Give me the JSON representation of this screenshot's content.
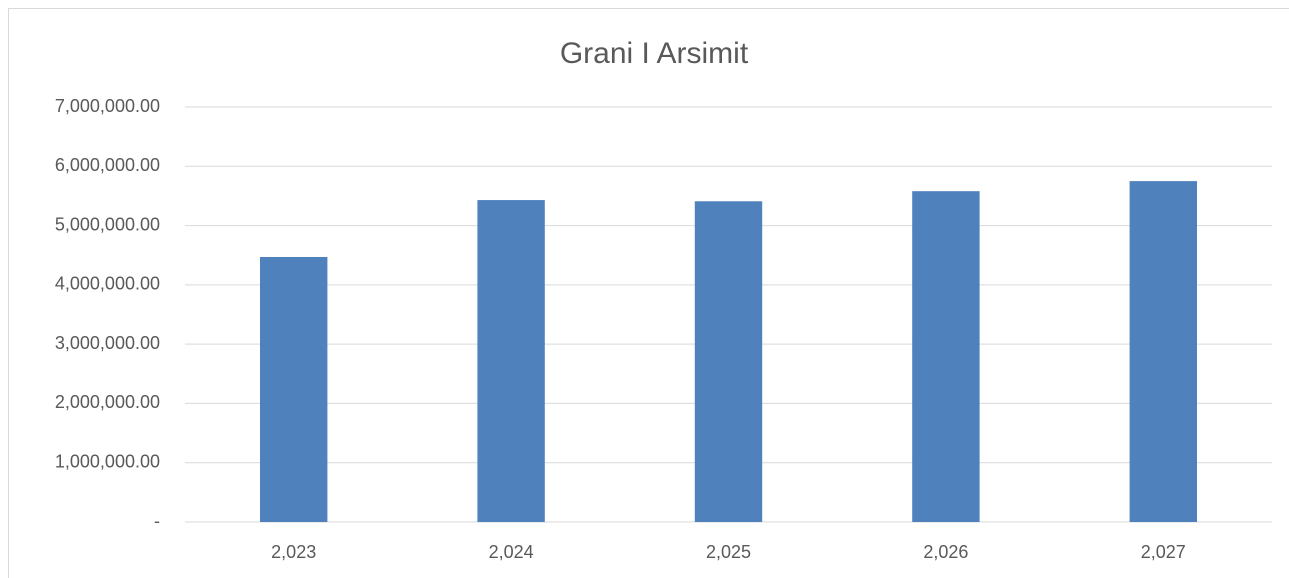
{
  "chart_data": {
    "type": "bar",
    "title": "Grani I Arsimit",
    "categories": [
      "2,023",
      "2,024",
      "2,025",
      "2,026",
      "2,027"
    ],
    "values": [
      4470000,
      5430000,
      5410000,
      5580000,
      5750000
    ],
    "color": "#4f81bd",
    "ylim": [
      0,
      7000000
    ],
    "yticks": [
      {
        "value": 0,
        "label": "-"
      },
      {
        "value": 1000000,
        "label": "1,000,000.00"
      },
      {
        "value": 2000000,
        "label": "2,000,000.00"
      },
      {
        "value": 3000000,
        "label": "3,000,000.00"
      },
      {
        "value": 4000000,
        "label": "4,000,000.00"
      },
      {
        "value": 5000000,
        "label": "5,000,000.00"
      },
      {
        "value": 6000000,
        "label": "6,000,000.00"
      },
      {
        "value": 7000000,
        "label": "7,000,000.00"
      }
    ],
    "grid": true
  }
}
